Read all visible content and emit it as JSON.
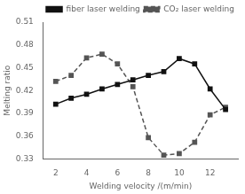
{
  "chart_data": {
    "type": "line",
    "xlabel": "Welding velocity /(m/min)",
    "ylabel": "Melting ratio",
    "x": [
      2,
      3,
      4,
      5,
      6,
      7,
      8,
      9,
      10,
      11,
      12,
      13
    ],
    "series": [
      {
        "name": "fiber laser welding",
        "color": "#111111",
        "marker": "square",
        "line_style": "solid",
        "values": [
          0.402,
          0.41,
          0.415,
          0.422,
          0.428,
          0.434,
          0.44,
          0.445,
          0.462,
          0.455,
          0.422,
          0.395
        ]
      },
      {
        "name": "CO₂ laser welding",
        "color": "#555555",
        "marker": "square",
        "line_style": "dashed",
        "values": [
          0.432,
          0.44,
          0.463,
          0.468,
          0.455,
          0.425,
          0.358,
          0.335,
          0.337,
          0.352,
          0.388,
          0.398
        ]
      }
    ],
    "xlim": [
      1.2,
      13.8
    ],
    "ylim": [
      0.33,
      0.51
    ],
    "xticks": [
      2,
      4,
      6,
      8,
      10,
      12
    ],
    "yticks": [
      0.33,
      0.36,
      0.39,
      0.42,
      0.45,
      0.48,
      0.51
    ],
    "grid": false,
    "legend": "upper right"
  }
}
